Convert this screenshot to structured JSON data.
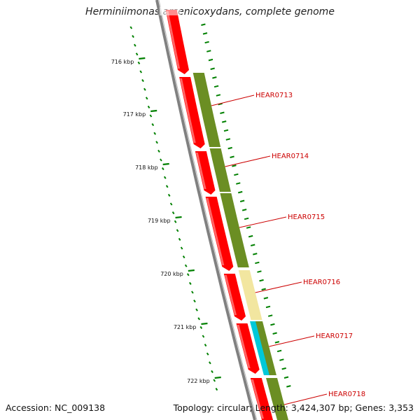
{
  "title": "Herminiimonas arsenicoxydans, complete genome",
  "footer": {
    "accession": "Accession: NC_009138",
    "stats": "Topology: circular; Length: 3,424,307 bp; Genes: 3,353"
  },
  "scale": {
    "unit": "kbp",
    "labels": [
      "716 kbp",
      "717 kbp",
      "718 kbp",
      "719 kbp",
      "720 kbp",
      "721 kbp",
      "722 kbp"
    ]
  },
  "genes": [
    {
      "name": "HEAR0713"
    },
    {
      "name": "HEAR0714"
    },
    {
      "name": "HEAR0715"
    },
    {
      "name": "HEAR0716"
    },
    {
      "name": "HEAR0717"
    },
    {
      "name": "HEAR0718"
    }
  ],
  "colors": {
    "red_track": "#ff0000",
    "olive_track": "#6b8e23",
    "yellow_segment": "#f2e6a0",
    "cyan_segment": "#00c8d8",
    "backbone": "#808080",
    "tick_color": "#008000",
    "label_color": "#cc0000"
  }
}
